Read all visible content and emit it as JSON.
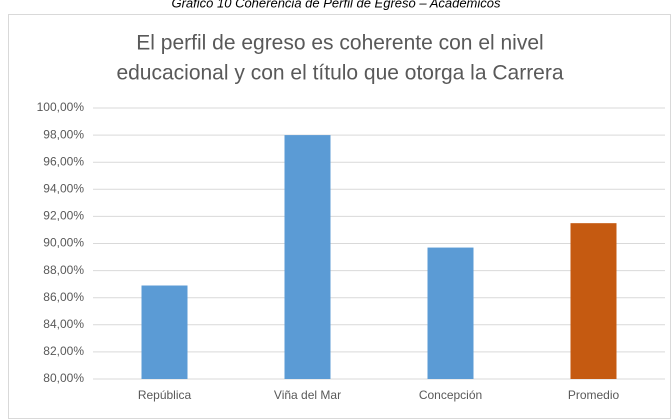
{
  "caption": "Gráfico 10 Coherencia de Perfil de Egreso – Académicos",
  "chart_data": {
    "type": "bar",
    "title": [
      "El perfil de egreso es coherente con el nivel",
      "educacional y con el título que otorga la Carrera"
    ],
    "categories": [
      "República",
      "Viña del Mar",
      "Concepción",
      "Promedio"
    ],
    "values": [
      86.9,
      98.0,
      89.7,
      91.5
    ],
    "colors": [
      "#5b9bd5",
      "#5b9bd5",
      "#5b9bd5",
      "#c55a11"
    ],
    "ylim": [
      80,
      100
    ],
    "yticks": [
      {
        "value": 80,
        "label": "80,00%"
      },
      {
        "value": 82,
        "label": "82,00%"
      },
      {
        "value": 84,
        "label": "84,00%"
      },
      {
        "value": 86,
        "label": "86,00%"
      },
      {
        "value": 88,
        "label": "88,00%"
      },
      {
        "value": 90,
        "label": "90,00%"
      },
      {
        "value": 92,
        "label": "92,00%"
      },
      {
        "value": 94,
        "label": "94,00%"
      },
      {
        "value": 96,
        "label": "96,00%"
      },
      {
        "value": 98,
        "label": "98,00%"
      },
      {
        "value": 100,
        "label": "100,00%"
      }
    ],
    "grid": true
  }
}
